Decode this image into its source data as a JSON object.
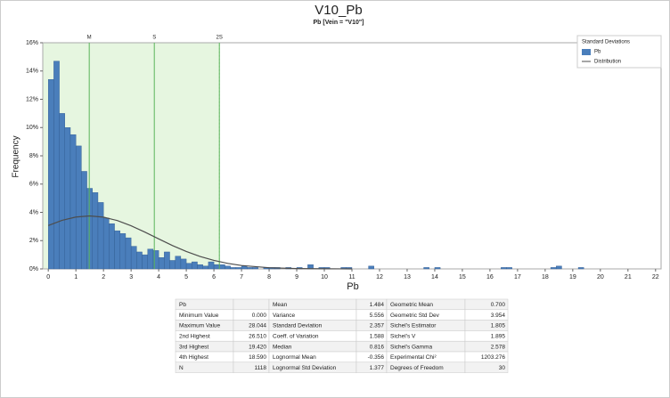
{
  "chart_data": {
    "type": "histogram",
    "title": "V10_Pb",
    "subtitle": "Pb [Vein = \"V10\"]",
    "x_label": "Pb",
    "y_label": "Frequency",
    "bins": [
      0,
      0.2,
      0.4,
      0.6,
      0.8,
      1,
      1.2,
      1.4,
      1.6,
      1.8,
      2,
      2.2,
      2.4,
      2.6,
      2.8,
      3,
      3.2,
      3.4,
      3.6,
      3.8,
      4,
      4.2,
      4.4,
      4.6,
      4.8,
      5,
      5.2,
      5.4,
      5.6,
      5.8,
      6,
      6.2,
      6.4,
      6.6,
      6.8,
      7,
      7.2,
      7.4,
      7.6,
      7.8,
      8,
      8.2,
      8.4,
      8.6,
      8.8,
      9,
      9.2,
      9.4,
      9.6,
      9.8,
      10,
      10.2,
      10.4,
      10.6,
      10.8,
      11,
      11.2,
      11.4,
      11.6,
      11.8,
      12,
      12.2,
      12.4,
      12.6,
      12.8,
      13,
      13.2,
      13.4,
      13.6,
      13.8,
      14,
      14.2,
      14.4,
      14.6,
      14.8,
      15,
      15.2,
      15.4,
      15.6,
      15.8,
      16,
      16.2,
      16.4,
      16.6,
      16.8,
      17,
      17.2,
      17.4,
      17.6,
      17.8,
      18,
      18.2,
      18.4,
      18.6,
      18.8,
      19,
      19.2,
      19.4,
      19.6
    ],
    "series": [
      {
        "name": "Pb",
        "color": "#4a7ebb",
        "values": [
          13.4,
          14.7,
          11.0,
          10.0,
          9.5,
          8.7,
          6.9,
          5.7,
          5.4,
          4.7,
          3.6,
          3.2,
          2.7,
          2.5,
          2.2,
          1.6,
          1.2,
          1.0,
          1.4,
          1.3,
          0.8,
          1.2,
          0.6,
          0.9,
          0.7,
          0.4,
          0.5,
          0.3,
          0.2,
          0.5,
          0.3,
          0.3,
          0.2,
          0.1,
          0.1,
          0.2,
          0.1,
          0.1,
          0,
          0.1,
          0.1,
          0.1,
          0,
          0.1,
          0,
          0.1,
          0,
          0.3,
          0,
          0.1,
          0.1,
          0,
          0,
          0.1,
          0.1,
          0,
          0,
          0,
          0.2,
          0,
          0,
          0,
          0,
          0,
          0,
          0,
          0,
          0,
          0.1,
          0,
          0.1,
          0,
          0,
          0,
          0,
          0,
          0,
          0,
          0,
          0,
          0,
          0,
          0.1,
          0.1,
          0,
          0,
          0,
          0,
          0,
          0,
          0,
          0.1,
          0.2,
          0,
          0,
          0,
          0.1,
          0
        ]
      }
    ],
    "distribution": {
      "name": "Distribution",
      "color": "#4d4d4d",
      "x": [
        0,
        0.5,
        1,
        1.5,
        2,
        2.5,
        3,
        3.5,
        4,
        4.5,
        5,
        5.5,
        6,
        6.5,
        7,
        8,
        9,
        10,
        11
      ],
      "values": [
        3.07,
        3.44,
        3.67,
        3.75,
        3.66,
        3.42,
        3.05,
        2.6,
        2.12,
        1.65,
        1.23,
        0.88,
        0.6,
        0.39,
        0.24,
        0.082,
        0.023,
        0.006,
        0.001
      ]
    },
    "legend_title": "Standard Deviations",
    "legend": "top-right",
    "reference_lines": [
      {
        "label": "M",
        "value": 1.484
      },
      {
        "label": "S",
        "value": 3.841
      },
      {
        "label": "2S",
        "value": 6.198
      }
    ],
    "reference_color": "#5ab45a",
    "band_color": "#e6f6e0",
    "xlim": [
      -0.2,
      22.2
    ],
    "xticks": [
      0,
      1,
      2,
      3,
      4,
      5,
      6,
      7,
      8,
      9,
      10,
      11,
      12,
      13,
      14,
      15,
      16,
      17,
      18,
      19,
      20,
      21,
      22
    ],
    "ylim": [
      0,
      16
    ],
    "yticks": [
      {
        "value": 0,
        "label": "0%"
      },
      {
        "value": 2,
        "label": "2%"
      },
      {
        "value": 4,
        "label": "4%"
      },
      {
        "value": 6,
        "label": "6%"
      },
      {
        "value": 8,
        "label": "8%"
      },
      {
        "value": 10,
        "label": "10%"
      },
      {
        "value": 12,
        "label": "12%"
      },
      {
        "value": 14,
        "label": "14%"
      },
      {
        "value": 16,
        "label": "16%"
      }
    ],
    "grid": false
  },
  "stats_table": {
    "rows": [
      [
        "Pb",
        null,
        "Mean",
        "1.484",
        "Geometric Mean",
        "0.700"
      ],
      [
        "Minimum Value",
        "0.000",
        "Variance",
        "5.556",
        "Geometric Std Dev",
        "3.954"
      ],
      [
        "Maximum Value",
        "28.044",
        "Standard Deviation",
        "2.357",
        "Sichel's Estimator",
        "1.805"
      ],
      [
        "2nd Highest",
        "26.510",
        "Coeff. of Variation",
        "1.588",
        "Sichel's V",
        "1.895"
      ],
      [
        "3rd Highest",
        "19.420",
        "Median",
        "0.816",
        "Sichel's Gamma",
        "2.578"
      ],
      [
        "4th Highest",
        "18.590",
        "Lognormal Mean",
        "-0.356",
        "Experimental Chi²",
        "1203.276"
      ],
      [
        "N",
        "1118",
        "Lognormal Std Deviation",
        "1.377",
        "Degrees of Freedom",
        "30"
      ]
    ]
  }
}
